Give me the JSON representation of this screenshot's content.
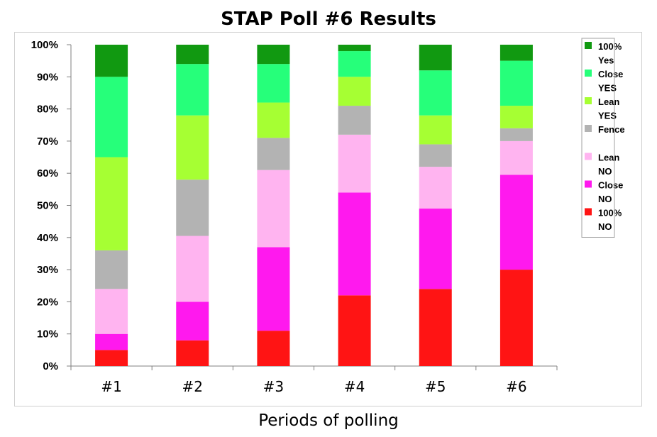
{
  "chart_data": {
    "type": "bar",
    "stacked": true,
    "title": "STAP Poll #6 Results",
    "xlabel": "Periods of polling",
    "ylabel": "",
    "ylim": [
      0,
      100
    ],
    "y_ticks": [
      "0%",
      "10%",
      "20%",
      "30%",
      "40%",
      "50%",
      "60%",
      "70%",
      "80%",
      "90%",
      "100%"
    ],
    "grid": false,
    "legend_position": "right",
    "categories": [
      "#1",
      "#2",
      "#3",
      "#4",
      "#5",
      "#6"
    ],
    "series": [
      {
        "name": "100% NO",
        "color": "#ff1414",
        "values": [
          5,
          8,
          11,
          22,
          24,
          30
        ]
      },
      {
        "name": "Close NO",
        "color": "#ff19ee",
        "values": [
          5,
          12,
          26,
          32,
          25,
          29.5
        ]
      },
      {
        "name": "Lean NO",
        "color": "#ffb4f0",
        "values": [
          14,
          20.5,
          24,
          18,
          13,
          10.5
        ]
      },
      {
        "name": "Fence",
        "color": "#b3b3b3",
        "values": [
          12,
          17.5,
          10,
          9,
          7,
          4
        ]
      },
      {
        "name": "Lean YES",
        "color": "#a6ff33",
        "values": [
          29,
          20,
          11,
          9,
          9,
          7
        ]
      },
      {
        "name": "Close YES",
        "color": "#26ff7a",
        "values": [
          25,
          16,
          12,
          8,
          14,
          14
        ]
      },
      {
        "name": "100% Yes",
        "color": "#119911",
        "values": [
          10,
          6,
          6,
          2,
          8,
          5
        ]
      }
    ],
    "legend": [
      {
        "series": "100% Yes",
        "lines": [
          "100%",
          "Yes"
        ]
      },
      {
        "series": "Close YES",
        "lines": [
          "Close",
          "YES"
        ]
      },
      {
        "series": "Lean YES",
        "lines": [
          "Lean",
          "YES"
        ]
      },
      {
        "series": "Fence",
        "lines": [
          "Fence"
        ]
      },
      {
        "series": "Lean NO",
        "lines": [
          "Lean",
          "NO"
        ]
      },
      {
        "series": "Close NO",
        "lines": [
          "Close",
          "NO"
        ]
      },
      {
        "series": "100% NO",
        "lines": [
          "100%",
          "NO"
        ]
      }
    ]
  }
}
